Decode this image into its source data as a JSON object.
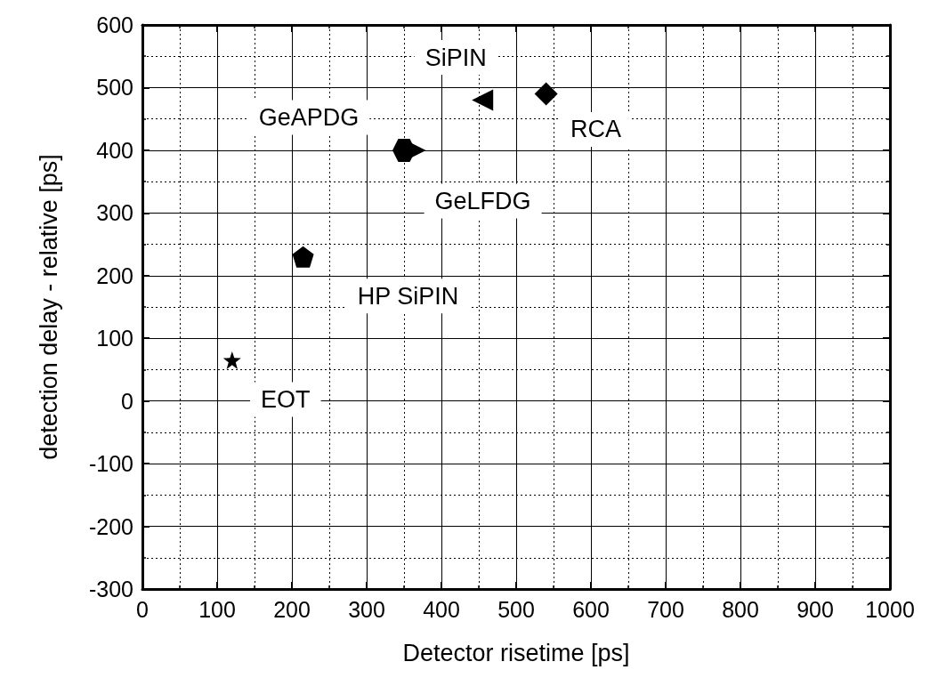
{
  "chart_data": {
    "type": "scatter",
    "xlabel": "Detector risetime [ps]",
    "ylabel": "detection delay - relative [ps]",
    "xlim": [
      0,
      1000
    ],
    "xticks": [
      0,
      100,
      200,
      300,
      400,
      500,
      600,
      700,
      800,
      900,
      {
        "value": 1000,
        "label": "1000"
      }
    ],
    "ylim": [
      -300,
      600
    ],
    "yticks": [
      -300,
      -200,
      -100,
      0,
      100,
      200,
      300,
      400,
      500,
      600
    ],
    "grid": true,
    "series": [
      {
        "name": "EOT",
        "color": "#000000",
        "marker": "star",
        "x": [
          120
        ],
        "values": [
          65
        ]
      },
      {
        "name": "HP SiPIN",
        "color": "#000000",
        "x": [
          215
        ],
        "values": [
          230
        ]
      },
      {
        "name": "GeAPDG",
        "color": "#000000",
        "x": [
          350
        ],
        "values": [
          400
        ]
      },
      {
        "name": "GeLFDG",
        "color": "#000000",
        "marker": "triangle",
        "x": [
          365
        ],
        "values": [
          400
        ]
      },
      {
        "name": "SiPIN",
        "color": "#000000",
        "marker": "triangle",
        "x": [
          455
        ],
        "values": [
          480
        ]
      },
      {
        "name": "RCA",
        "color": "#000000",
        "marker": "diamond",
        "x": [
          540
        ],
        "values": [
          490
        ]
      }
    ]
  }
}
